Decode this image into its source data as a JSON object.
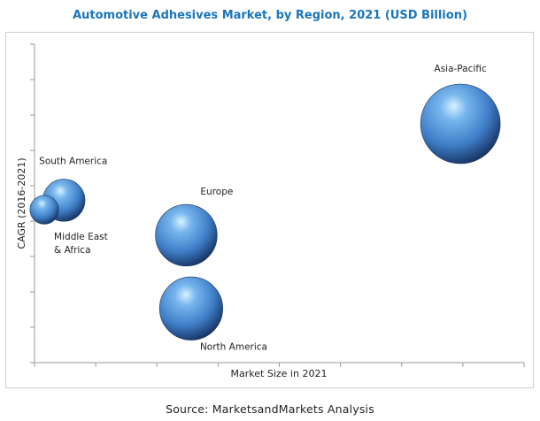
{
  "title": "Automotive Adhesives Market, by Region, 2021 (USD Billion)",
  "source": "Source: MarketsandMarkets Analysis",
  "chart_data": {
    "type": "bubble",
    "title": "Automotive Adhesives Market, by Region, 2021 (USD Billion)",
    "xlabel": "Market Size in 2021",
    "ylabel": "CAGR (2016-2021)",
    "xlim": [
      0,
      100
    ],
    "ylim": [
      0,
      100
    ],
    "x_ticks": 8,
    "y_ticks": 9,
    "grid": false,
    "legend": "none",
    "bubble_color": "#3f7ec7",
    "points": [
      {
        "label": "Asia-Pacific",
        "x": 87,
        "y": 75,
        "size": 100,
        "label_pos": "above"
      },
      {
        "label": "South America",
        "x": 6,
        "y": 51,
        "size": 28,
        "label_pos": "above"
      },
      {
        "label": "Middle East & Africa",
        "x": 2,
        "y": 48,
        "size": 13,
        "label_pos": "below-right"
      },
      {
        "label": "Europe",
        "x": 31,
        "y": 40,
        "size": 60,
        "label_pos": "above-right"
      },
      {
        "label": "North America",
        "x": 32,
        "y": 17,
        "size": 63,
        "label_pos": "below-right"
      }
    ]
  }
}
